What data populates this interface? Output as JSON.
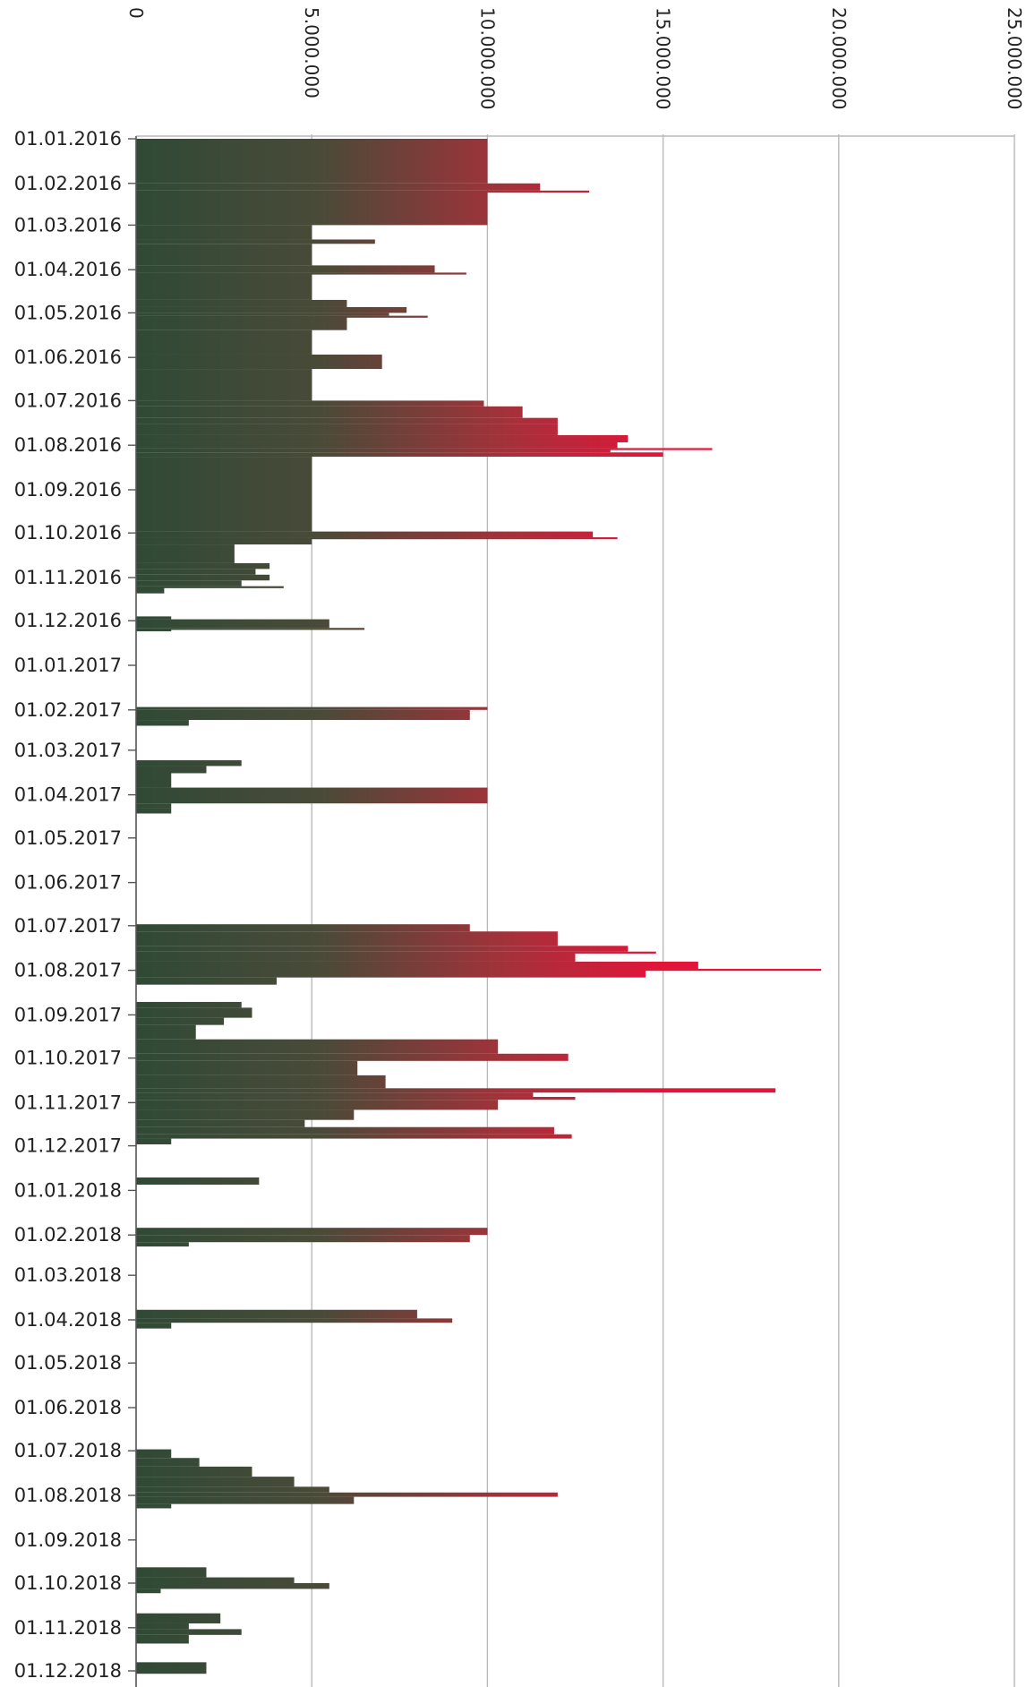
{
  "chart_data": {
    "type": "bar",
    "orientation": "horizontal",
    "x_axis_position": "top",
    "x_tick_labels_rotated": true,
    "xlim": [
      0,
      25000000
    ],
    "x_ticks": [
      "0",
      "5.000.000",
      "10.000.000",
      "15.000.000",
      "20.000.000",
      "25.000.000"
    ],
    "x_tick_values": [
      0,
      5000000,
      10000000,
      15000000,
      20000000,
      25000000
    ],
    "grid": true,
    "legend": "none",
    "colors": {
      "low": "#2f4a36",
      "high": "#e3143a",
      "grid": "#b8b8b8",
      "axis": "#555555"
    },
    "date_range": [
      "01.01.2016",
      "01.12.2018"
    ],
    "date_labels": [
      "01.01.2016",
      "01.02.2016",
      "01.03.2016",
      "01.04.2016",
      "01.05.2016",
      "01.06.2016",
      "01.07.2016",
      "01.08.2016",
      "01.09.2016",
      "01.10.2016",
      "01.11.2016",
      "01.12.2016",
      "01.01.2017",
      "01.02.2017",
      "01.03.2017",
      "01.04.2017",
      "01.05.2017",
      "01.06.2017",
      "01.07.2017",
      "01.08.2017",
      "01.09.2017",
      "01.10.2017",
      "01.11.2017",
      "01.12.2017",
      "01.01.2018",
      "01.02.2018",
      "01.03.2018",
      "01.04.2018",
      "01.05.2018",
      "01.06.2018",
      "01.07.2018",
      "01.08.2018",
      "01.09.2018",
      "01.10.2018",
      "01.11.2018",
      "01.12.2018"
    ],
    "segments": [
      {
        "from": "01.01.2016",
        "to": "01.02.2016",
        "value": 10000000
      },
      {
        "from": "01.02.2016",
        "to": "06.02.2016",
        "value": 11500000
      },
      {
        "from": "06.02.2016",
        "to": "07.02.2016",
        "value": 12900000
      },
      {
        "from": "07.02.2016",
        "to": "01.03.2016",
        "value": 10000000
      },
      {
        "from": "01.03.2016",
        "to": "11.03.2016",
        "value": 5000000
      },
      {
        "from": "11.03.2016",
        "to": "14.03.2016",
        "value": 6800000
      },
      {
        "from": "14.03.2016",
        "to": "29.03.2016",
        "value": 5000000
      },
      {
        "from": "29.03.2016",
        "to": "03.04.2016",
        "value": 8500000
      },
      {
        "from": "03.04.2016",
        "to": "04.04.2016",
        "value": 9400000
      },
      {
        "from": "04.04.2016",
        "to": "22.04.2016",
        "value": 5000000
      },
      {
        "from": "22.04.2016",
        "to": "27.04.2016",
        "value": 6000000
      },
      {
        "from": "27.04.2016",
        "to": "01.05.2016",
        "value": 7700000
      },
      {
        "from": "01.05.2016",
        "to": "03.05.2016",
        "value": 7200000
      },
      {
        "from": "03.05.2016",
        "to": "04.05.2016",
        "value": 8300000
      },
      {
        "from": "04.05.2016",
        "to": "13.05.2016",
        "value": 6000000
      },
      {
        "from": "13.05.2016",
        "to": "30.05.2016",
        "value": 5000000
      },
      {
        "from": "30.05.2016",
        "to": "09.06.2016",
        "value": 7000000
      },
      {
        "from": "09.06.2016",
        "to": "01.07.2016",
        "value": 5000000
      },
      {
        "from": "01.07.2016",
        "to": "05.07.2016",
        "value": 9900000
      },
      {
        "from": "05.07.2016",
        "to": "13.07.2016",
        "value": 11000000
      },
      {
        "from": "13.07.2016",
        "to": "17.07.2016",
        "value": 12000000
      },
      {
        "from": "17.07.2016",
        "to": "25.07.2016",
        "value": 12000000
      },
      {
        "from": "25.07.2016",
        "to": "30.07.2016",
        "value": 14000000
      },
      {
        "from": "30.07.2016",
        "to": "03.08.2016",
        "value": 13700000
      },
      {
        "from": "03.08.2016",
        "to": "04.08.2016",
        "value": 16400000
      },
      {
        "from": "04.08.2016",
        "to": "06.08.2016",
        "value": 13500000
      },
      {
        "from": "06.08.2016",
        "to": "09.08.2016",
        "value": 15000000
      },
      {
        "from": "09.08.2016",
        "to": "30.09.2016",
        "value": 5000000
      },
      {
        "from": "30.09.2016",
        "to": "04.10.2016",
        "value": 13000000
      },
      {
        "from": "04.10.2016",
        "to": "05.10.2016",
        "value": 13700000
      },
      {
        "from": "05.10.2016",
        "to": "09.10.2016",
        "value": 5000000
      },
      {
        "from": "09.10.2016",
        "to": "22.10.2016",
        "value": 2800000
      },
      {
        "from": "22.10.2016",
        "to": "26.10.2016",
        "value": 3800000
      },
      {
        "from": "26.10.2016",
        "to": "30.10.2016",
        "value": 3400000
      },
      {
        "from": "30.10.2016",
        "to": "03.11.2016",
        "value": 3800000
      },
      {
        "from": "03.11.2016",
        "to": "07.11.2016",
        "value": 3000000
      },
      {
        "from": "07.11.2016",
        "to": "08.11.2016",
        "value": 4200000
      },
      {
        "from": "08.11.2016",
        "to": "12.11.2016",
        "value": 800000
      },
      {
        "from": "28.11.2016",
        "to": "30.11.2016",
        "value": 1000000
      },
      {
        "from": "30.11.2016",
        "to": "06.12.2016",
        "value": 5500000
      },
      {
        "from": "06.12.2016",
        "to": "07.12.2016",
        "value": 6500000
      },
      {
        "from": "07.12.2016",
        "to": "08.12.2016",
        "value": 1000000
      },
      {
        "from": "30.01.2017",
        "to": "01.02.2017",
        "value": 10000000
      },
      {
        "from": "01.02.2017",
        "to": "08.02.2017",
        "value": 9500000
      },
      {
        "from": "08.02.2017",
        "to": "12.02.2017",
        "value": 1500000
      },
      {
        "from": "08.03.2017",
        "to": "12.03.2017",
        "value": 3000000
      },
      {
        "from": "12.03.2017",
        "to": "17.03.2017",
        "value": 2000000
      },
      {
        "from": "17.03.2017",
        "to": "27.03.2017",
        "value": 1000000
      },
      {
        "from": "27.03.2017",
        "to": "07.04.2017",
        "value": 10000000
      },
      {
        "from": "07.04.2017",
        "to": "10.04.2017",
        "value": 1000000
      },
      {
        "from": "10.04.2017",
        "to": "14.04.2017",
        "value": 1000000
      },
      {
        "from": "30.06.2017",
        "to": "05.07.2017",
        "value": 9500000
      },
      {
        "from": "05.07.2017",
        "to": "15.07.2017",
        "value": 12000000
      },
      {
        "from": "15.07.2017",
        "to": "19.07.2017",
        "value": 14000000
      },
      {
        "from": "19.07.2017",
        "to": "20.07.2017",
        "value": 14800000
      },
      {
        "from": "20.07.2017",
        "to": "26.07.2017",
        "value": 12500000
      },
      {
        "from": "26.07.2017",
        "to": "31.07.2017",
        "value": 16000000
      },
      {
        "from": "31.07.2017",
        "to": "01.08.2017",
        "value": 19500000
      },
      {
        "from": "01.08.2017",
        "to": "06.08.2017",
        "value": 14500000
      },
      {
        "from": "06.08.2017",
        "to": "11.08.2017",
        "value": 4000000
      },
      {
        "from": "23.08.2017",
        "to": "27.08.2017",
        "value": 3000000
      },
      {
        "from": "27.08.2017",
        "to": "03.09.2017",
        "value": 3300000
      },
      {
        "from": "03.09.2017",
        "to": "08.09.2017",
        "value": 2500000
      },
      {
        "from": "08.09.2017",
        "to": "18.09.2017",
        "value": 1700000
      },
      {
        "from": "18.09.2017",
        "to": "28.09.2017",
        "value": 10300000
      },
      {
        "from": "28.09.2017",
        "to": "03.10.2017",
        "value": 12300000
      },
      {
        "from": "03.10.2017",
        "to": "13.10.2017",
        "value": 6300000
      },
      {
        "from": "13.10.2017",
        "to": "22.10.2017",
        "value": 7100000
      },
      {
        "from": "22.10.2017",
        "to": "25.10.2017",
        "value": 18200000
      },
      {
        "from": "25.10.2017",
        "to": "28.10.2017",
        "value": 11300000
      },
      {
        "from": "28.10.2017",
        "to": "30.10.2017",
        "value": 12500000
      },
      {
        "from": "30.10.2017",
        "to": "06.11.2017",
        "value": 10300000
      },
      {
        "from": "06.11.2017",
        "to": "13.11.2017",
        "value": 6200000
      },
      {
        "from": "13.11.2017",
        "to": "18.11.2017",
        "value": 4800000
      },
      {
        "from": "18.11.2017",
        "to": "23.11.2017",
        "value": 11900000
      },
      {
        "from": "23.11.2017",
        "to": "26.11.2017",
        "value": 12400000
      },
      {
        "from": "26.11.2017",
        "to": "30.11.2017",
        "value": 1000000
      },
      {
        "from": "23.12.2017",
        "to": "28.12.2017",
        "value": 3500000
      },
      {
        "from": "27.01.2018",
        "to": "01.02.2018",
        "value": 10000000
      },
      {
        "from": "01.02.2018",
        "to": "06.02.2018",
        "value": 9500000
      },
      {
        "from": "06.02.2018",
        "to": "09.02.2018",
        "value": 1500000
      },
      {
        "from": "25.03.2018",
        "to": "31.03.2018",
        "value": 8000000
      },
      {
        "from": "31.03.2018",
        "to": "03.04.2018",
        "value": 9000000
      },
      {
        "from": "03.04.2018",
        "to": "07.04.2018",
        "value": 1000000
      },
      {
        "from": "30.06.2018",
        "to": "06.07.2018",
        "value": 1000000
      },
      {
        "from": "06.07.2018",
        "to": "12.07.2018",
        "value": 1800000
      },
      {
        "from": "12.07.2018",
        "to": "19.07.2018",
        "value": 3300000
      },
      {
        "from": "19.07.2018",
        "to": "26.07.2018",
        "value": 4500000
      },
      {
        "from": "26.07.2018",
        "to": "30.07.2018",
        "value": 5500000
      },
      {
        "from": "30.07.2018",
        "to": "02.08.2018",
        "value": 12000000
      },
      {
        "from": "02.08.2018",
        "to": "07.08.2018",
        "value": 6200000
      },
      {
        "from": "07.08.2018",
        "to": "10.08.2018",
        "value": 1000000
      },
      {
        "from": "20.09.2018",
        "to": "27.09.2018",
        "value": 2000000
      },
      {
        "from": "27.09.2018",
        "to": "01.10.2018",
        "value": 4500000
      },
      {
        "from": "01.10.2018",
        "to": "05.10.2018",
        "value": 5500000
      },
      {
        "from": "05.10.2018",
        "to": "08.10.2018",
        "value": 700000
      },
      {
        "from": "22.10.2018",
        "to": "29.10.2018",
        "value": 2400000
      },
      {
        "from": "29.10.2018",
        "to": "02.11.2018",
        "value": 1500000
      },
      {
        "from": "02.11.2018",
        "to": "06.11.2018",
        "value": 3000000
      },
      {
        "from": "06.11.2018",
        "to": "12.11.2018",
        "value": 1500000
      },
      {
        "from": "25.11.2018",
        "to": "03.12.2018",
        "value": 2000000
      }
    ]
  }
}
